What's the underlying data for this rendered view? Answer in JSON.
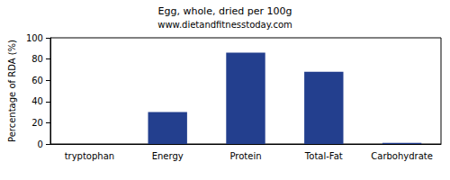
{
  "chart_data": {
    "type": "bar",
    "title": "Egg, whole, dried per 100g",
    "subtitle": "www.dietandfitnesstoday.com",
    "y_label": "Percentage of RDA (%)",
    "categories": [
      "tryptophan",
      "Energy",
      "Protein",
      "Total-Fat",
      "Carbohydrate"
    ],
    "values": [
      0,
      30,
      86,
      68,
      1
    ],
    "color": "#233f8e",
    "ylim": [
      0,
      100
    ],
    "yticks": [
      0,
      20,
      40,
      60,
      80,
      100
    ],
    "grid": false
  }
}
